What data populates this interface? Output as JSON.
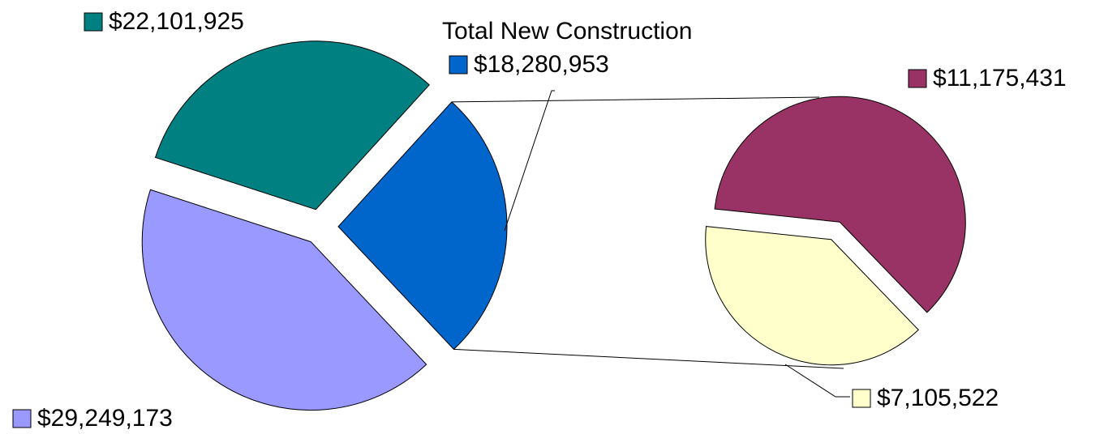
{
  "chart_data": {
    "type": "pie-of-pie",
    "categories": [
      null,
      "Total New Construction",
      null
    ],
    "values": [
      22101925,
      18280953,
      29249173
    ],
    "value_labels": [
      "$22,101,925",
      "$18,280,953",
      "$29,249,173"
    ],
    "colors": [
      "#008080",
      "#0066cc",
      "#9999ff"
    ],
    "secondary": {
      "values": [
        11175431,
        7105522
      ],
      "value_labels": [
        "$11,175,431",
        "$7,105,522"
      ],
      "colors": [
        "#993366",
        "#ffffcc"
      ]
    }
  }
}
